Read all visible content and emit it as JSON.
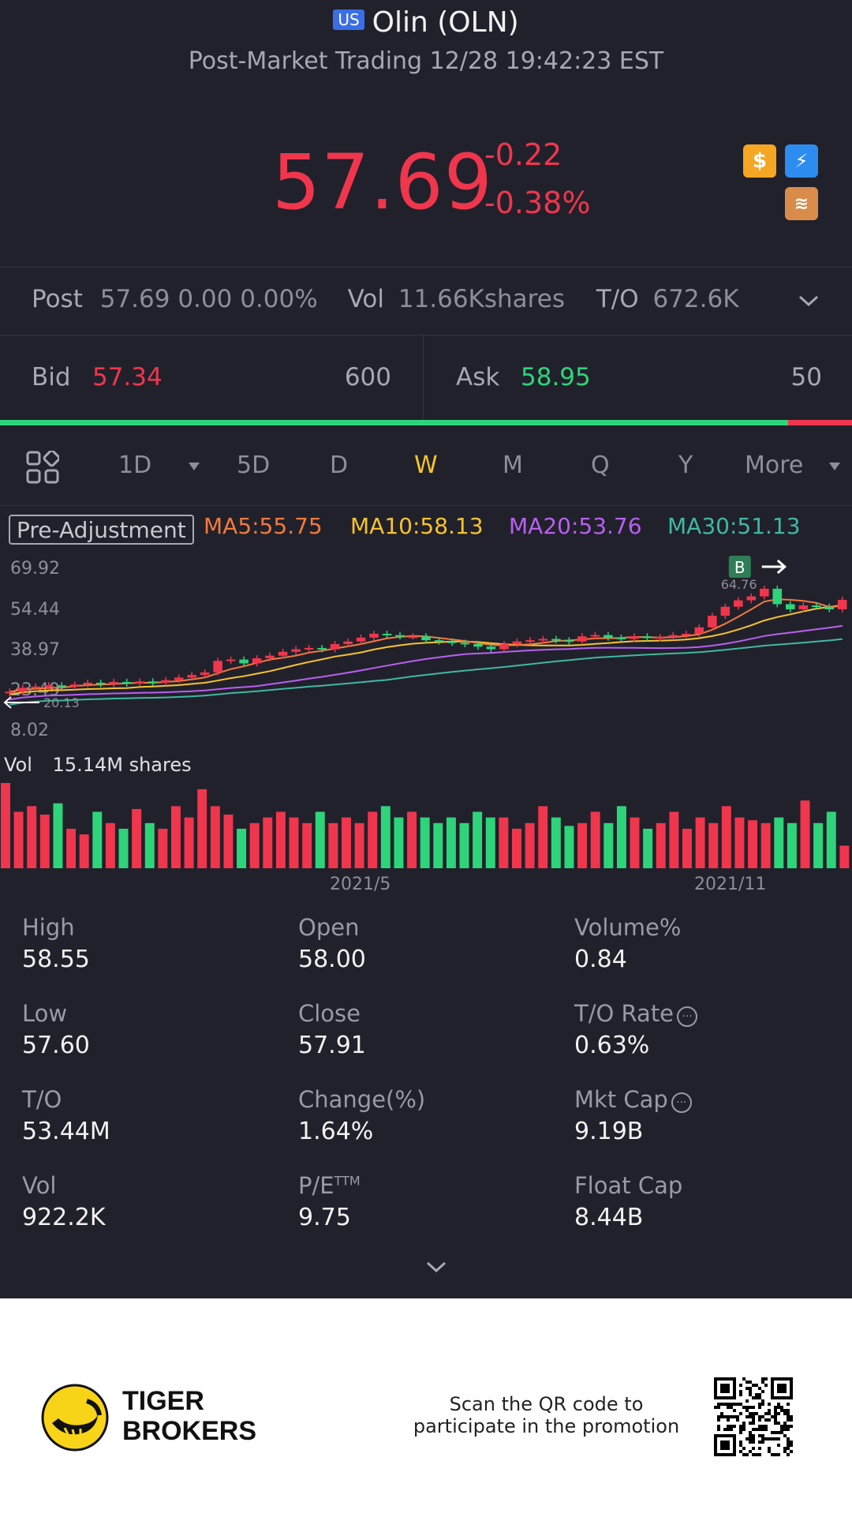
{
  "header": {
    "market_badge": "US",
    "title": "Olin (OLN)",
    "subtitle": "Post-Market Trading 12/28 19:42:23 EST"
  },
  "quote": {
    "price": "57.69",
    "change": "-0.22",
    "change_pct": "-0.38%"
  },
  "post_row": {
    "post_label": "Post",
    "post_value": "57.69 0.00 0.00%",
    "vol_label": "Vol",
    "vol_value": "11.66Kshares",
    "to_label": "T/O",
    "to_value": "672.6K"
  },
  "bidask": {
    "bid_label": "Bid",
    "bid_price": "57.34",
    "bid_size": "600",
    "ask_label": "Ask",
    "ask_price": "58.95",
    "ask_size": "50",
    "bid_fraction": 0.925
  },
  "period_tabs": [
    {
      "label": "1D"
    },
    {
      "label": "5D"
    },
    {
      "label": "D"
    },
    {
      "label": "W"
    },
    {
      "label": "M"
    },
    {
      "label": "Q"
    },
    {
      "label": "Y"
    },
    {
      "label": "More"
    }
  ],
  "active_tab": "W",
  "indicators": {
    "adjust_label": "Pre-Adjustment",
    "ma5": "MA5:55.75",
    "ma10": "MA10:58.13",
    "ma20": "MA20:53.76",
    "ma30": "MA30:51.13"
  },
  "colors": {
    "up": "#f0364d",
    "down": "#2ed47a",
    "ma5": "#f27a3c",
    "ma10": "#f7c32e",
    "ma20": "#b860f0",
    "ma30": "#3fb8a3",
    "accent_active": "#f7c32e"
  },
  "price_axis": [
    "69.92",
    "54.44",
    "38.97",
    "23.49",
    "8.02"
  ],
  "annotations": {
    "high_marker": "64.76",
    "low_marker": "20.13",
    "buy_badge": "B"
  },
  "volume": {
    "label": "Vol",
    "value": "15.14M shares"
  },
  "time_axis": [
    "2021/5",
    "2021/11"
  ],
  "stats": [
    {
      "label": "High",
      "value": "58.55"
    },
    {
      "label": "Open",
      "value": "58.00"
    },
    {
      "label": "Volume%",
      "value": "0.84"
    },
    {
      "label": "Low",
      "value": "57.60"
    },
    {
      "label": "Close",
      "value": "57.91"
    },
    {
      "label": "T/O Rate",
      "value": "0.63%"
    },
    {
      "label": "T/O",
      "value": "53.44M"
    },
    {
      "label": "Change(%)",
      "value": "1.64%"
    },
    {
      "label": "Mkt Cap",
      "value": "9.19B"
    },
    {
      "label": "Vol",
      "value": "922.2K"
    },
    {
      "label": "P/E",
      "value": "9.75",
      "superscript": "TTM"
    },
    {
      "label": "Float Cap",
      "value": "8.44B"
    }
  ],
  "footer": {
    "brand_line1": "TIGER",
    "brand_line2": "BROKERS",
    "promo_line1": "Scan the QR code to",
    "promo_line2": "participate in the promotion"
  },
  "chart_data": {
    "type": "candlestick",
    "y_range": [
      8.02,
      69.92
    ],
    "x_ticks": [
      "2021/5",
      "2021/11"
    ],
    "closes": [
      22.0,
      23.5,
      24.0,
      24.5,
      24.0,
      24.8,
      25.5,
      25.0,
      25.8,
      25.2,
      26.0,
      25.5,
      26.5,
      27.5,
      28.5,
      29.5,
      34.0,
      34.5,
      33.0,
      35.0,
      36.0,
      37.5,
      38.5,
      39.0,
      38.5,
      40.5,
      41.5,
      43.0,
      44.5,
      44.0,
      43.5,
      43.5,
      42.0,
      41.5,
      41.0,
      40.5,
      39.5,
      38.5,
      40.5,
      41.5,
      42.0,
      42.5,
      42.0,
      41.5,
      43.5,
      44.0,
      43.0,
      42.5,
      43.5,
      42.8,
      43.2,
      44.0,
      44.5,
      47.0,
      51.5,
      55.0,
      57.5,
      59.0,
      62.0,
      56.0,
      54.0,
      55.5,
      55.0,
      54.0,
      57.69
    ],
    "volumes": [
      15.1,
      10.0,
      11.0,
      9.5,
      11.5,
      7.0,
      6.0,
      10.0,
      8.0,
      7.0,
      10.5,
      8.0,
      7.0,
      11.0,
      9.0,
      14.0,
      11.0,
      9.5,
      7.0,
      8.0,
      9.0,
      10.0,
      9.0,
      8.0,
      10.0,
      8.0,
      9.0,
      8.0,
      10.0,
      11.0,
      9.0,
      10.0,
      9.0,
      8.0,
      9.0,
      8.0,
      10.0,
      9.0,
      9.0,
      7.0,
      8.0,
      11.0,
      9.0,
      7.5,
      8.0,
      10.0,
      8.0,
      11.0,
      9.0,
      7.0,
      8.0,
      10.0,
      7.0,
      9.0,
      8.0,
      11.0,
      9.0,
      8.5,
      8.0,
      9.0,
      8.0,
      12.0,
      8.0,
      10.0,
      4.0
    ]
  }
}
